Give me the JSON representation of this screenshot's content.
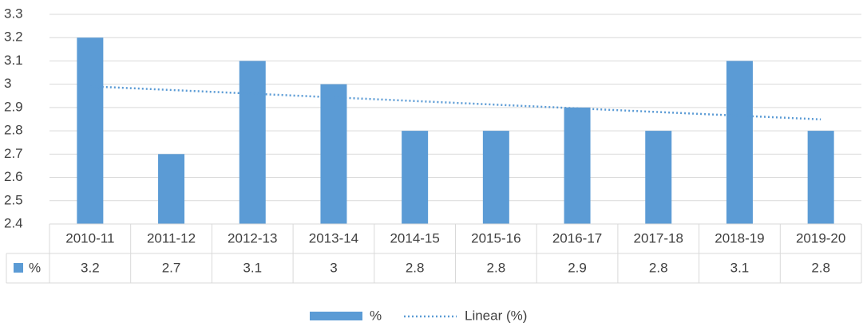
{
  "chart_data": {
    "type": "bar",
    "categories": [
      "2010-11",
      "2011-12",
      "2012-13",
      "2013-14",
      "2014-15",
      "2015-16",
      "2016-17",
      "2017-18",
      "2018-19",
      "2019-20"
    ],
    "series": [
      {
        "name": "%",
        "color": "#5b9bd5",
        "values": [
          3.2,
          2.7,
          3.1,
          3,
          2.8,
          2.8,
          2.9,
          2.8,
          3.1,
          2.8
        ]
      }
    ],
    "trendline": {
      "name": "Linear (%)",
      "type": "linear"
    },
    "ylim": [
      2.4,
      3.3
    ],
    "yticks": [
      2.4,
      2.5,
      2.6,
      2.7,
      2.8,
      2.9,
      3,
      3.1,
      3.2,
      3.3
    ],
    "grid": true,
    "data_table": true,
    "legend": "bottom"
  }
}
